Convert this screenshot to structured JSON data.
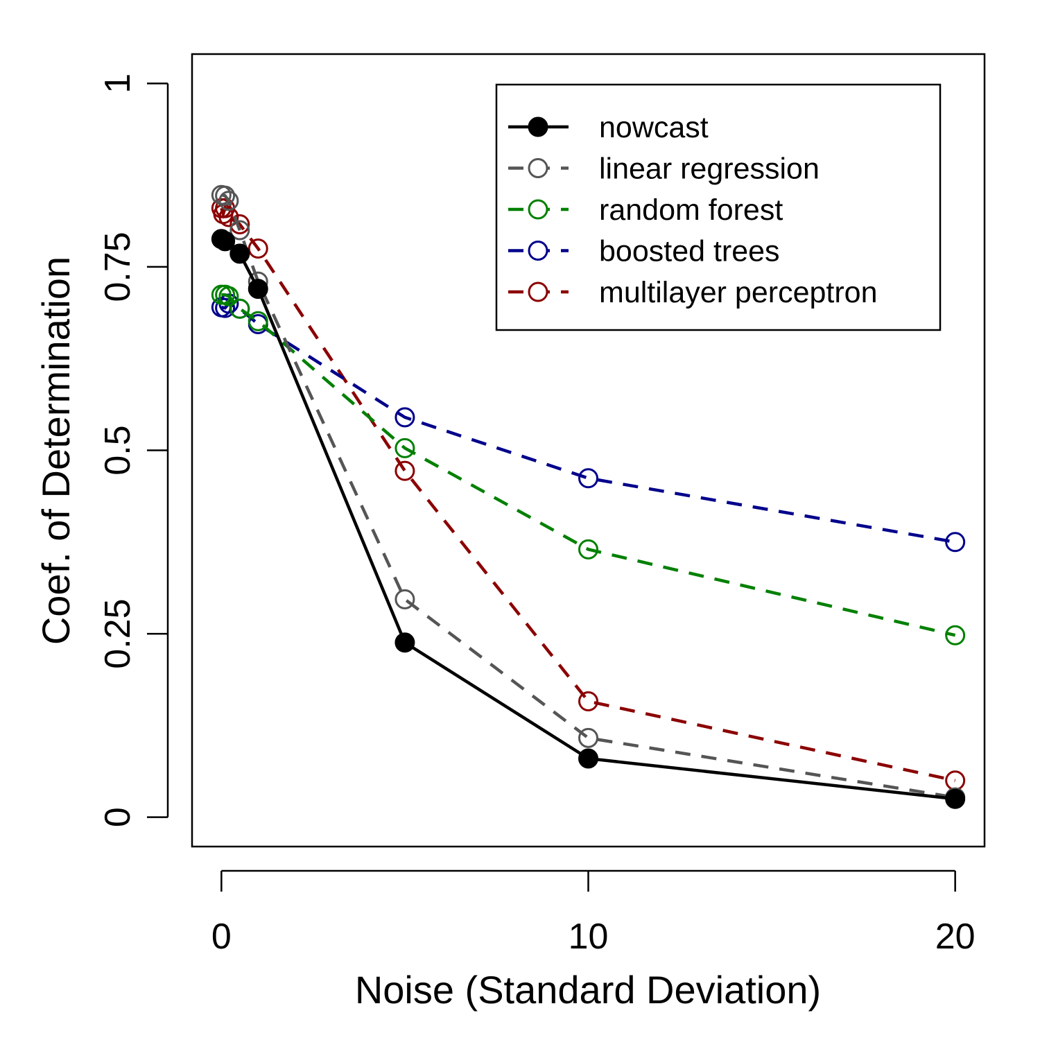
{
  "chart_data": {
    "type": "line",
    "title": "",
    "xlabel": "Noise (Standard Deviation)",
    "ylabel": "Coef. of Determination",
    "xlim": [
      -0.8,
      20.8
    ],
    "ylim": [
      -0.04,
      1.04
    ],
    "x_ticks": [
      0,
      10,
      20
    ],
    "x_tick_labels": [
      "0",
      "10",
      "20"
    ],
    "y_ticks": [
      0,
      0.25,
      0.5,
      0.75,
      1
    ],
    "y_tick_labels": [
      "0",
      "0.25",
      "0.5",
      "0.75",
      "1"
    ],
    "grid": false,
    "legend_position": "top-right",
    "series": [
      {
        "name": "nowcast",
        "color": "#000000",
        "line": "solid",
        "marker": "filled-circle",
        "x": [
          0,
          0.1,
          0.5,
          1,
          5,
          10,
          20
        ],
        "y": [
          0.788,
          0.785,
          0.768,
          0.72,
          0.238,
          0.08,
          0.025
        ]
      },
      {
        "name": "linear regression",
        "color": "#555555",
        "line": "dashed",
        "marker": "open-circle",
        "x": [
          0,
          0.1,
          0.2,
          0.5,
          1,
          5,
          10,
          20
        ],
        "y": [
          0.848,
          0.847,
          0.84,
          0.8,
          0.73,
          0.297,
          0.108,
          0.027
        ]
      },
      {
        "name": "random forest",
        "color": "#008000",
        "line": "dashed",
        "marker": "open-circle",
        "x": [
          0,
          0.1,
          0.2,
          0.5,
          1,
          5,
          10,
          20
        ],
        "y": [
          0.712,
          0.712,
          0.71,
          0.693,
          0.676,
          0.503,
          0.365,
          0.248
        ]
      },
      {
        "name": "boosted trees",
        "color": "#00008B",
        "line": "dashed",
        "marker": "open-circle",
        "x": [
          0,
          0.1,
          0.2,
          0.5,
          1,
          5,
          10,
          20
        ],
        "y": [
          0.695,
          0.694,
          0.7,
          0.693,
          0.672,
          0.545,
          0.462,
          0.375
        ]
      },
      {
        "name": "multilayer perceptron",
        "color": "#8B0000",
        "line": "dashed",
        "marker": "open-circle",
        "x": [
          0,
          0.05,
          0.1,
          0.2,
          0.5,
          1,
          5,
          10,
          20
        ],
        "y": [
          0.83,
          0.822,
          0.83,
          0.818,
          0.808,
          0.775,
          0.472,
          0.158,
          0.05
        ]
      }
    ]
  }
}
